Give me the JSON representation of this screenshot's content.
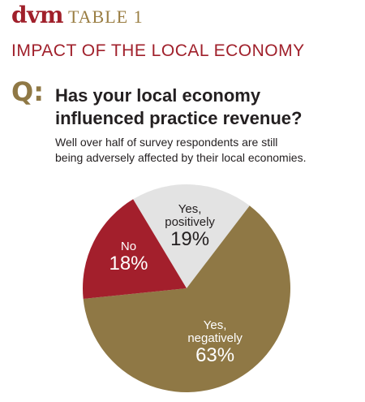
{
  "header": {
    "logo": "dvm",
    "table_label": "TABLE 1",
    "headline": "IMPACT OF THE LOCAL ECONOMY"
  },
  "question": {
    "marker": "Q:",
    "line1": "Has your local economy",
    "line2": "influenced practice revenue?",
    "sub1": "Well over half of survey respondents are still",
    "sub2": "being adversely affected by their local economies."
  },
  "colors": {
    "brand_red": "#a0202b",
    "gold": "#8f7845",
    "slice_negative": "#8f7845",
    "slice_no": "#a31f2c",
    "slice_positive": "#e3e3e3"
  },
  "chart_data": {
    "type": "pie",
    "slices": [
      {
        "label": "Yes, positively",
        "lines": [
          "Yes,",
          "positively"
        ],
        "pct_label": "19%",
        "value": 19,
        "color": "#e3e3e3",
        "text_color": "#231f20"
      },
      {
        "label": "Yes, negatively",
        "lines": [
          "Yes,",
          "negatively"
        ],
        "pct_label": "63%",
        "value": 63,
        "color": "#8f7845",
        "text_color": "#ffffff"
      },
      {
        "label": "No",
        "lines": [
          "No"
        ],
        "pct_label": "18%",
        "value": 18,
        "color": "#a31f2c",
        "text_color": "#ffffff"
      }
    ]
  }
}
